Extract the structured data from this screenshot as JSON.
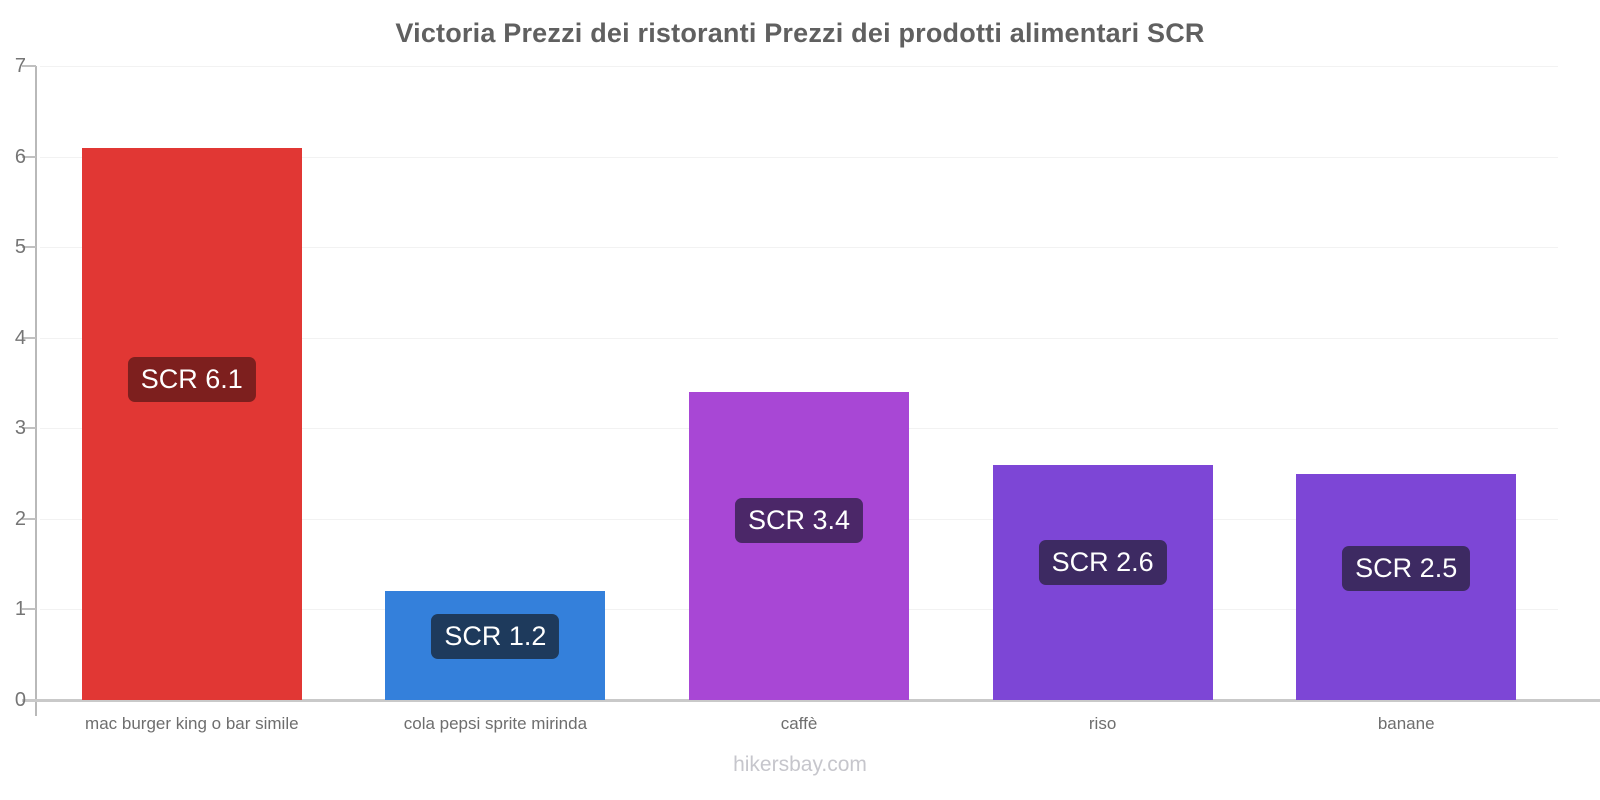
{
  "chart_data": {
    "type": "bar",
    "title": "Victoria Prezzi dei ristoranti Prezzi dei prodotti alimentari SCR",
    "currency": "SCR",
    "categories": [
      "mac burger king o bar simile",
      "cola pepsi sprite mirinda",
      "caffè",
      "riso",
      "banane"
    ],
    "values": [
      6.1,
      1.2,
      3.4,
      2.6,
      2.5
    ],
    "value_labels": [
      "SCR 6.1",
      "SCR 1.2",
      "SCR 3.4",
      "SCR 2.6",
      "SCR 2.5"
    ],
    "bar_colors": [
      "#e13734",
      "#3480db",
      "#a847d5",
      "#7d46d6",
      "#7d46d6"
    ],
    "label_bg_colors": [
      "#7d1f1e",
      "#1e3a5c",
      "#4b2768",
      "#3d2a62",
      "#3d2a62"
    ],
    "xlabel": "",
    "ylabel": "",
    "ylim": [
      0,
      7
    ],
    "yticks": [
      0,
      1,
      2,
      3,
      4,
      5,
      6,
      7
    ],
    "grid": true,
    "legend": "none",
    "colors": {
      "title_text": "#606060",
      "axis_line": "#b9b9b9",
      "gridline": "#f2f2f2",
      "baseline": "#c9c9c9",
      "tick_text": "#757575",
      "category_text": "#6e6e6e",
      "value_text": "#ffffff",
      "background": "#ffffff"
    }
  },
  "footer": {
    "text": "hikersbay.com"
  }
}
